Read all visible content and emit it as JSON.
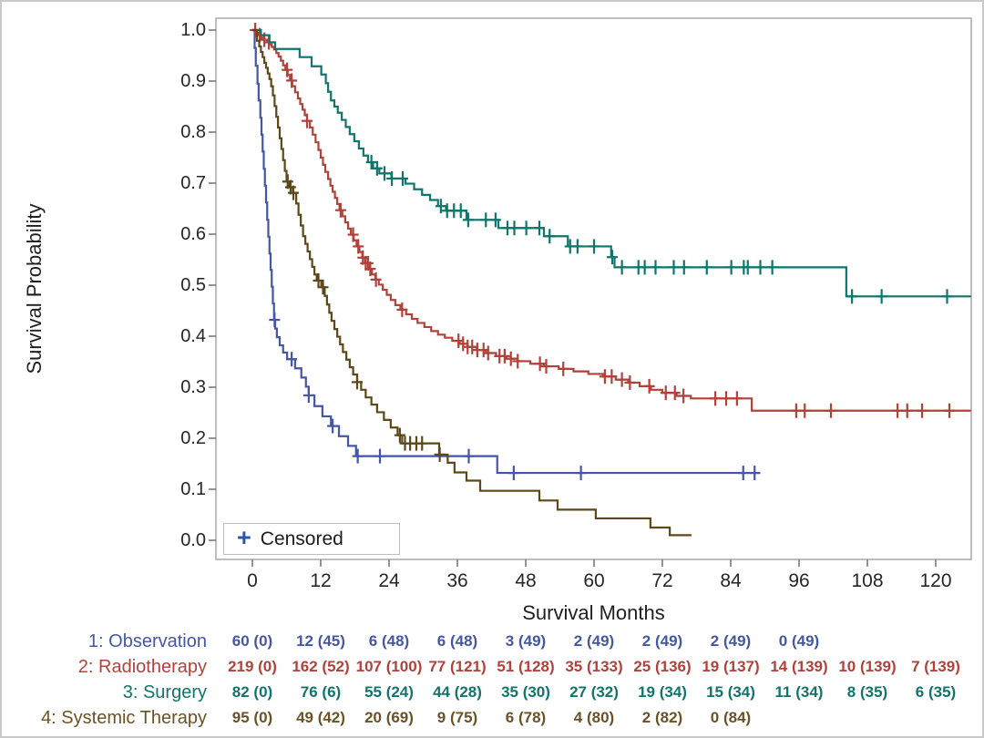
{
  "chart_data": {
    "type": "line",
    "subtype": "kaplan-meier-step",
    "title": "",
    "xlabel": "Survival Months",
    "ylabel": "Survival Probability",
    "xlim": [
      0,
      126.2
    ],
    "ylim": [
      0.0,
      1.0
    ],
    "grid": false,
    "legend_position": "bottom-left-inside",
    "x_ticks": [
      0,
      12,
      24,
      36,
      48,
      60,
      72,
      84,
      96,
      108,
      120
    ],
    "y_ticks": [
      1.0,
      0.9,
      0.8,
      0.7,
      0.6,
      0.5,
      0.4,
      0.3,
      0.2,
      0.1,
      0.0
    ],
    "y_tick_labels": [
      "1.0",
      "0.9",
      "0.8",
      "0.7",
      "0.6",
      "0.5",
      "0.4",
      "0.3",
      "0.2",
      "0.1",
      "0.0"
    ],
    "series": [
      {
        "name": "1: Observation",
        "color": "#4456a5",
        "end_month": 89.2,
        "steps": [
          [
            0,
            1.0
          ],
          [
            0.4,
            0.965
          ],
          [
            0.6,
            0.93
          ],
          [
            0.9,
            0.895
          ],
          [
            1.1,
            0.862
          ],
          [
            1.4,
            0.828
          ],
          [
            1.6,
            0.795
          ],
          [
            1.8,
            0.762
          ],
          [
            2.0,
            0.728
          ],
          [
            2.2,
            0.695
          ],
          [
            2.4,
            0.662
          ],
          [
            2.6,
            0.628
          ],
          [
            2.8,
            0.595
          ],
          [
            3.0,
            0.562
          ],
          [
            3.2,
            0.53
          ],
          [
            3.4,
            0.497
          ],
          [
            3.6,
            0.464
          ],
          [
            3.8,
            0.432
          ],
          [
            4.0,
            0.415
          ],
          [
            4.3,
            0.398
          ],
          [
            4.8,
            0.382
          ],
          [
            5.4,
            0.368
          ],
          [
            6.1,
            0.355
          ],
          [
            7.5,
            0.337
          ],
          [
            8.6,
            0.319
          ],
          [
            9.4,
            0.301
          ],
          [
            9.9,
            0.284
          ],
          [
            10.9,
            0.263
          ],
          [
            12.3,
            0.243
          ],
          [
            13.8,
            0.224
          ],
          [
            15.2,
            0.204
          ],
          [
            16.8,
            0.185
          ],
          [
            18.2,
            0.165
          ],
          [
            43.0,
            0.132
          ]
        ],
        "censor_months": [
          3.9,
          6.9,
          9.9,
          14.1,
          18.5,
          22.4,
          38.0,
          45.9,
          57.7,
          86.2,
          88.2
        ]
      },
      {
        "name": "2: Radiotherapy",
        "color": "#b0423a",
        "end_month": 126.2,
        "steps": [
          [
            0,
            1.0
          ],
          [
            0.6,
            0.995
          ],
          [
            1.1,
            0.99
          ],
          [
            1.6,
            0.985
          ],
          [
            2.1,
            0.981
          ],
          [
            2.6,
            0.976
          ],
          [
            3.0,
            0.972
          ],
          [
            3.4,
            0.967
          ],
          [
            3.8,
            0.962
          ],
          [
            4.2,
            0.955
          ],
          [
            4.6,
            0.948
          ],
          [
            5.0,
            0.94
          ],
          [
            5.4,
            0.931
          ],
          [
            5.8,
            0.922
          ],
          [
            6.2,
            0.912
          ],
          [
            6.6,
            0.901
          ],
          [
            7.0,
            0.89
          ],
          [
            7.5,
            0.878
          ],
          [
            8.0,
            0.866
          ],
          [
            8.4,
            0.855
          ],
          [
            8.8,
            0.844
          ],
          [
            9.2,
            0.833
          ],
          [
            9.6,
            0.822
          ],
          [
            10.1,
            0.809
          ],
          [
            10.6,
            0.795
          ],
          [
            11.1,
            0.78
          ],
          [
            11.6,
            0.765
          ],
          [
            12.0,
            0.75
          ],
          [
            12.4,
            0.736
          ],
          [
            12.8,
            0.722
          ],
          [
            13.3,
            0.708
          ],
          [
            13.7,
            0.695
          ],
          [
            14.1,
            0.683
          ],
          [
            14.5,
            0.671
          ],
          [
            14.9,
            0.659
          ],
          [
            15.3,
            0.647
          ],
          [
            15.8,
            0.635
          ],
          [
            16.3,
            0.623
          ],
          [
            16.8,
            0.611
          ],
          [
            17.3,
            0.599
          ],
          [
            17.8,
            0.588
          ],
          [
            18.3,
            0.576
          ],
          [
            18.8,
            0.565
          ],
          [
            19.3,
            0.554
          ],
          [
            19.8,
            0.543
          ],
          [
            20.4,
            0.532
          ],
          [
            21.0,
            0.521
          ],
          [
            21.6,
            0.511
          ],
          [
            22.2,
            0.501
          ],
          [
            22.9,
            0.491
          ],
          [
            23.6,
            0.481
          ],
          [
            24.3,
            0.471
          ],
          [
            25.1,
            0.461
          ],
          [
            26.0,
            0.452
          ],
          [
            27.0,
            0.443
          ],
          [
            28.0,
            0.434
          ],
          [
            29.0,
            0.426
          ],
          [
            30.2,
            0.418
          ],
          [
            31.4,
            0.41
          ],
          [
            32.6,
            0.403
          ],
          [
            33.8,
            0.397
          ],
          [
            35.1,
            0.391
          ],
          [
            36.4,
            0.385
          ],
          [
            37.8,
            0.379
          ],
          [
            39.4,
            0.373
          ],
          [
            41.0,
            0.367
          ],
          [
            42.8,
            0.361
          ],
          [
            44.6,
            0.356
          ],
          [
            46.6,
            0.351
          ],
          [
            48.8,
            0.346
          ],
          [
            51.2,
            0.341
          ],
          [
            53.8,
            0.336
          ],
          [
            56.4,
            0.331
          ],
          [
            59.0,
            0.326
          ],
          [
            61.6,
            0.321
          ],
          [
            63.8,
            0.315
          ],
          [
            66.0,
            0.309
          ],
          [
            68.0,
            0.302
          ],
          [
            70.0,
            0.295
          ],
          [
            72.0,
            0.289
          ],
          [
            74.5,
            0.283
          ],
          [
            77.0,
            0.278
          ],
          [
            87.7,
            0.254
          ]
        ],
        "censor_months": [
          0.5,
          1.3,
          2.1,
          2.9,
          6.1,
          6.9,
          9.6,
          15.5,
          17.7,
          18.6,
          19.4,
          19.9,
          20.3,
          20.7,
          21.7,
          26.3,
          36.2,
          37.0,
          37.8,
          38.6,
          39.5,
          40.6,
          41.4,
          43.4,
          44.3,
          45.4,
          46.6,
          50.5,
          51.6,
          54.6,
          61.9,
          63.1,
          64.9,
          66.3,
          69.7,
          72.6,
          74.2,
          75.7,
          81.3,
          83.2,
          85.1,
          95.5,
          97.0,
          101.6,
          113.3,
          115.0,
          117.6,
          122.4
        ]
      },
      {
        "name": "3: Surgery",
        "color": "#10756b",
        "end_month": 126.2,
        "steps": [
          [
            0,
            1.0
          ],
          [
            1.5,
            0.99
          ],
          [
            3.0,
            0.976
          ],
          [
            4.0,
            0.963
          ],
          [
            8.3,
            0.947
          ],
          [
            10.4,
            0.929
          ],
          [
            12.1,
            0.913
          ],
          [
            12.9,
            0.896
          ],
          [
            13.3,
            0.879
          ],
          [
            13.8,
            0.862
          ],
          [
            14.4,
            0.85
          ],
          [
            15.0,
            0.838
          ],
          [
            15.7,
            0.824
          ],
          [
            16.4,
            0.81
          ],
          [
            17.1,
            0.796
          ],
          [
            17.9,
            0.782
          ],
          [
            18.7,
            0.768
          ],
          [
            19.5,
            0.754
          ],
          [
            20.3,
            0.741
          ],
          [
            21.2,
            0.729
          ],
          [
            22.3,
            0.719
          ],
          [
            24.4,
            0.709
          ],
          [
            26.9,
            0.699
          ],
          [
            28.4,
            0.688
          ],
          [
            29.8,
            0.677
          ],
          [
            31.2,
            0.667
          ],
          [
            32.6,
            0.655
          ],
          [
            34.0,
            0.646
          ],
          [
            37.6,
            0.628
          ],
          [
            43.2,
            0.612
          ],
          [
            51.2,
            0.596
          ],
          [
            55.4,
            0.576
          ],
          [
            63.0,
            0.555
          ],
          [
            63.6,
            0.535
          ],
          [
            104.3,
            0.478
          ]
        ],
        "censor_months": [
          20.9,
          21.9,
          23.2,
          24.5,
          26.4,
          33.1,
          34.2,
          35.4,
          36.6,
          37.9,
          41.0,
          42.7,
          44.8,
          46.0,
          48.1,
          50.4,
          52.2,
          55.8,
          57.1,
          60.0,
          63.2,
          64.9,
          67.8,
          68.9,
          70.8,
          74.0,
          75.8,
          79.8,
          84.1,
          86.3,
          87.0,
          89.2,
          91.3,
          105.3,
          110.5,
          122.0
        ]
      },
      {
        "name": "4: Systemic Therapy",
        "color": "#5c4819",
        "end_month": 77.1,
        "steps": [
          [
            0,
            1.0
          ],
          [
            0.8,
            0.979
          ],
          [
            1.2,
            0.968
          ],
          [
            1.5,
            0.957
          ],
          [
            1.8,
            0.947
          ],
          [
            2.1,
            0.936
          ],
          [
            2.4,
            0.926
          ],
          [
            2.7,
            0.915
          ],
          [
            3.0,
            0.904
          ],
          [
            3.3,
            0.89
          ],
          [
            3.6,
            0.872
          ],
          [
            3.9,
            0.851
          ],
          [
            4.2,
            0.83
          ],
          [
            4.5,
            0.809
          ],
          [
            4.8,
            0.788
          ],
          [
            5.1,
            0.767
          ],
          [
            5.4,
            0.745
          ],
          [
            5.7,
            0.724
          ],
          [
            6.0,
            0.703
          ],
          [
            6.4,
            0.692
          ],
          [
            7.1,
            0.681
          ],
          [
            7.7,
            0.66
          ],
          [
            8.1,
            0.638
          ],
          [
            8.5,
            0.617
          ],
          [
            8.9,
            0.596
          ],
          [
            9.3,
            0.581
          ],
          [
            9.7,
            0.566
          ],
          [
            10.1,
            0.551
          ],
          [
            10.5,
            0.536
          ],
          [
            10.9,
            0.521
          ],
          [
            11.3,
            0.509
          ],
          [
            12.1,
            0.496
          ],
          [
            12.7,
            0.479
          ],
          [
            13.1,
            0.462
          ],
          [
            13.5,
            0.446
          ],
          [
            13.9,
            0.43
          ],
          [
            14.4,
            0.414
          ],
          [
            14.9,
            0.399
          ],
          [
            15.4,
            0.384
          ],
          [
            15.9,
            0.369
          ],
          [
            16.5,
            0.354
          ],
          [
            17.1,
            0.339
          ],
          [
            17.7,
            0.325
          ],
          [
            18.4,
            0.31
          ],
          [
            19.1,
            0.295
          ],
          [
            19.9,
            0.28
          ],
          [
            20.9,
            0.266
          ],
          [
            21.9,
            0.251
          ],
          [
            23.1,
            0.236
          ],
          [
            24.3,
            0.221
          ],
          [
            25.5,
            0.206
          ],
          [
            26.3,
            0.19
          ],
          [
            32.8,
            0.168
          ],
          [
            34.3,
            0.152
          ],
          [
            35.5,
            0.133
          ],
          [
            37.6,
            0.117
          ],
          [
            40.0,
            0.097
          ],
          [
            50.4,
            0.078
          ],
          [
            53.6,
            0.06
          ],
          [
            60.3,
            0.043
          ],
          [
            69.9,
            0.025
          ],
          [
            73.3,
            0.01
          ]
        ],
        "censor_months": [
          6.2,
          6.7,
          7.2,
          11.6,
          12.4,
          18.4,
          25.9,
          26.8,
          27.7,
          28.8,
          29.8,
          32.9
        ]
      }
    ]
  },
  "legend": {
    "censored_label": "Censored",
    "plus_glyph": "+"
  },
  "risk_table": {
    "rows": [
      {
        "label": "1: Observation",
        "color": "#4456a5",
        "values": [
          "60 (0)",
          "12 (45)",
          "6 (48)",
          "6 (48)",
          "3 (49)",
          "2 (49)",
          "2 (49)",
          "2 (49)",
          "0 (49)"
        ]
      },
      {
        "label": "2: Radiotherapy",
        "color": "#b0423a",
        "values": [
          "219 (0)",
          "162 (52)",
          "107 (100)",
          "77 (121)",
          "51 (128)",
          "35 (133)",
          "25 (136)",
          "19 (137)",
          "14 (139)",
          "10 (139)",
          "7 (139)"
        ]
      },
      {
        "label": "3: Surgery",
        "color": "#10756b",
        "values": [
          "82 (0)",
          "76 (6)",
          "55 (24)",
          "44 (28)",
          "35 (30)",
          "27 (32)",
          "19 (34)",
          "15 (34)",
          "11 (34)",
          "8 (35)",
          "6 (35)"
        ]
      },
      {
        "label": "4: Systemic Therapy",
        "color": "#6b5226",
        "values": [
          "95 (0)",
          "49 (42)",
          "20 (69)",
          "9 (75)",
          "6 (78)",
          "4 (80)",
          "2 (82)",
          "0 (84)"
        ]
      }
    ]
  },
  "styling": {
    "frame_color": "#a9a9a9",
    "tick_color": "#7a7a7a",
    "text_color": "#262626",
    "legend_plus_color": "#2e56a6"
  }
}
